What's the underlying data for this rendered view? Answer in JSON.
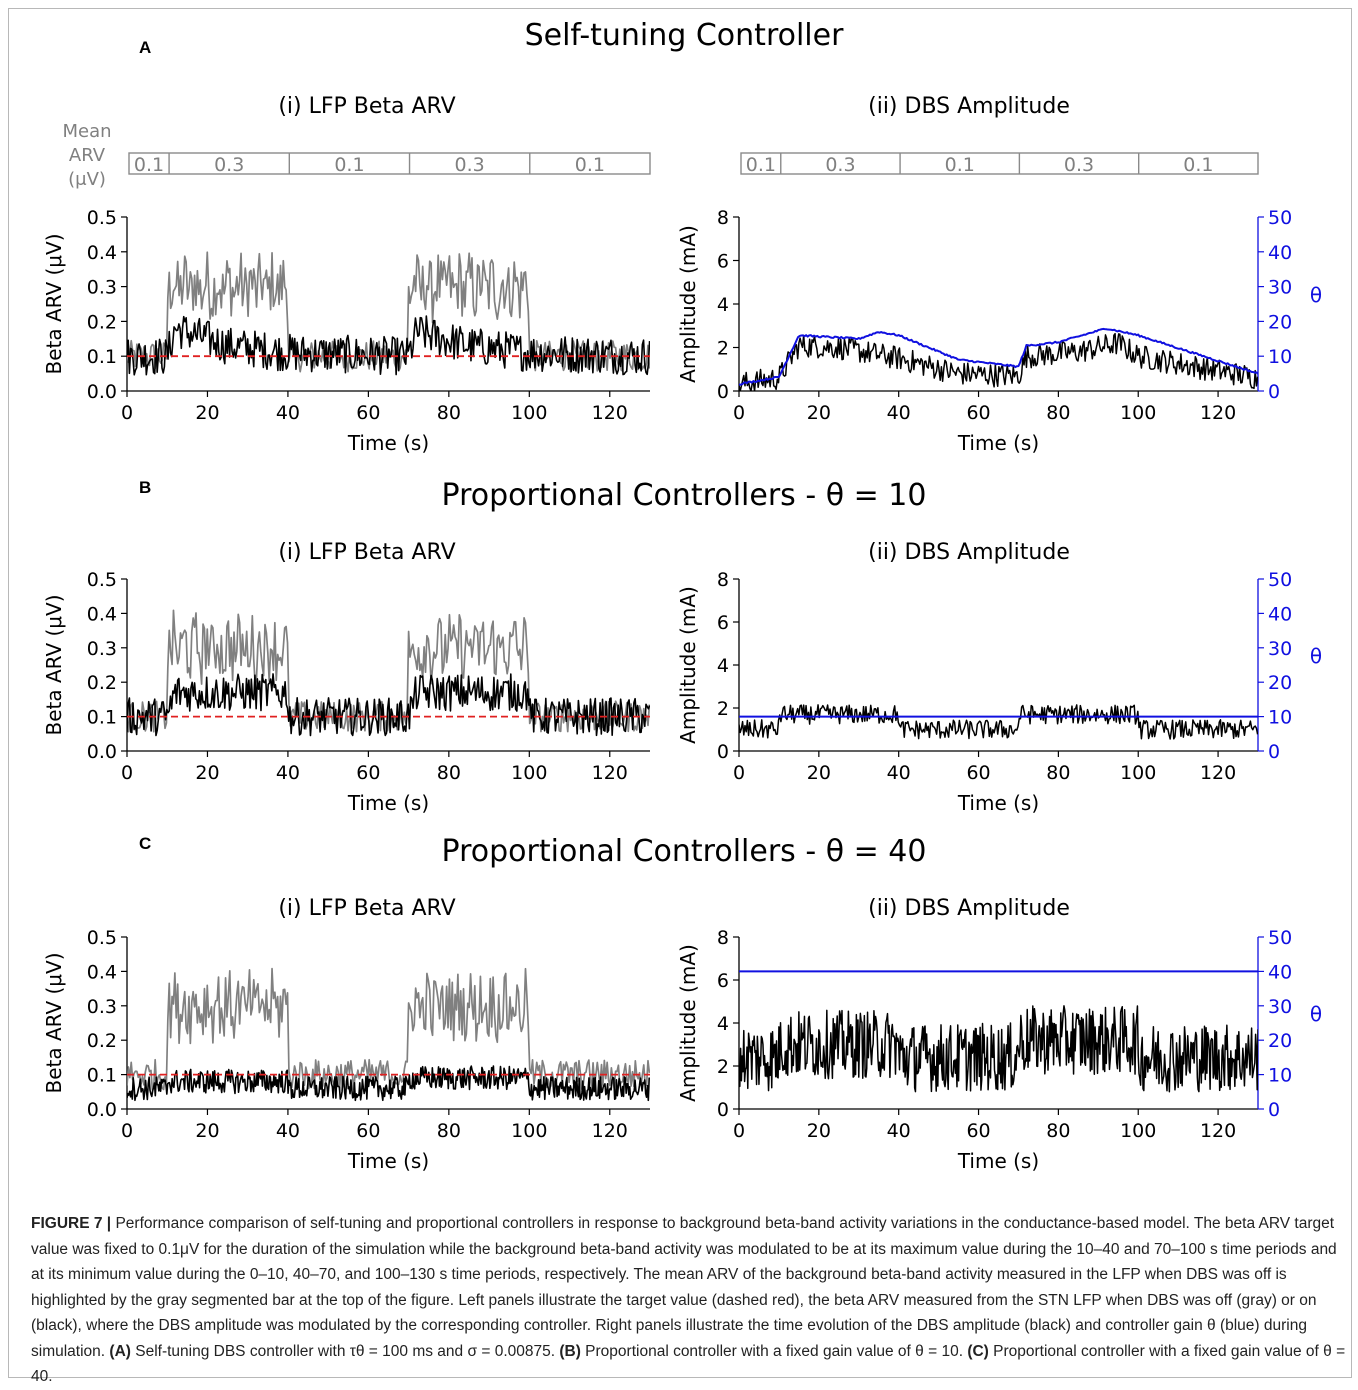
{
  "figure": {
    "sections": [
      {
        "letter": "A",
        "title": "Self-tuning Controller",
        "left_title": "(i) LFP Beta ARV",
        "right_title": "(ii) DBS Amplitude",
        "controller": "self-tuning"
      },
      {
        "letter": "B",
        "title": "Proportional Controllers - θ = 10",
        "left_title": "(i) LFP Beta ARV",
        "right_title": "(ii) DBS Amplitude",
        "controller": "proportional",
        "gain": 10
      },
      {
        "letter": "C",
        "title": "Proportional Controllers - θ = 40",
        "left_title": "(i) LFP Beta ARV",
        "right_title": "(ii) DBS Amplitude",
        "controller": "proportional",
        "gain": 40
      }
    ],
    "mean_arv_bar": {
      "label_lines": [
        "Mean",
        "ARV",
        "(μV)"
      ],
      "segments": [
        {
          "start": 0,
          "end": 10,
          "label": "0.1"
        },
        {
          "start": 10,
          "end": 40,
          "label": "0.3"
        },
        {
          "start": 40,
          "end": 70,
          "label": "0.1"
        },
        {
          "start": 70,
          "end": 100,
          "label": "0.3"
        },
        {
          "start": 100,
          "end": 130,
          "label": "0.1"
        }
      ]
    },
    "caption": {
      "lead": "FIGURE 7 |",
      "text": " Performance comparison of self-tuning and proportional controllers in response to background beta-band activity variations in the conductance-based model. The beta ARV target value was fixed to 0.1μV for the duration of the simulation while the background beta-band activity was modulated to be at its maximum value during the 10–40 and 70–100 s time periods and at its minimum value during the 0–10, 40–70, and 100–130 s time periods, respectively. The mean ARV of the background beta-band activity measured in the LFP when DBS was off is highlighted by the gray segmented bar at the top of the figure. Left panels illustrate the target value (dashed red), the beta ARV measured from the STN LFP when DBS was off (gray) or on (black), where the DBS amplitude was modulated by the corresponding controller. Right panels illustrate the time evolution of the DBS amplitude (black) and controller gain θ (blue) during simulation. ",
      "a_label": "(A)",
      "a_text": " Self-tuning DBS controller with τθ = 100 ms and σ = 0.00875. ",
      "b_label": "(B)",
      "b_text": " Proportional controller with a fixed gain value of θ = 10. ",
      "c_label": "(C)",
      "c_text": " Proportional controller with a fixed gain value of θ = 40."
    }
  },
  "chart_data": [
    {
      "type": "line",
      "panel": "A(i)",
      "title": "(i) LFP Beta ARV",
      "xlabel": "Time (s)",
      "ylabel": "Beta ARV (μV)",
      "xlim": [
        0,
        130
      ],
      "ylim": [
        0,
        0.5
      ],
      "xticks": [
        0,
        20,
        40,
        60,
        80,
        100,
        120
      ],
      "yticks": [
        0.0,
        0.1,
        0.2,
        0.3,
        0.4,
        0.5
      ],
      "series": [
        {
          "color": "#808080",
          "x": [
            0,
            10,
            10,
            40,
            40,
            70,
            70,
            100,
            100,
            130
          ],
          "values": [
            0.1,
            0.1,
            0.3,
            0.3,
            0.1,
            0.1,
            0.3,
            0.3,
            0.1,
            0.1
          ]
        },
        {
          "color": "#000000",
          "x": [
            0,
            10,
            12,
            25,
            40,
            70,
            72,
            85,
            100,
            130
          ],
          "values": [
            0.1,
            0.1,
            0.18,
            0.13,
            0.11,
            0.1,
            0.17,
            0.13,
            0.11,
            0.1
          ]
        },
        {
          "color": "#e02020",
          "dashed": true,
          "x": [
            0,
            130
          ],
          "values": [
            0.1,
            0.1
          ]
        }
      ]
    },
    {
      "type": "line",
      "panel": "A(ii)",
      "title": "(ii) DBS Amplitude",
      "xlabel": "Time (s)",
      "ylabel": "Amplitude (mA)",
      "y2label": "θ",
      "xlim": [
        0,
        130
      ],
      "ylim": [
        0,
        8
      ],
      "y2lim": [
        0,
        50
      ],
      "xticks": [
        0,
        20,
        40,
        60,
        80,
        100,
        120
      ],
      "yticks": [
        0,
        2,
        4,
        6,
        8
      ],
      "y2ticks": [
        0,
        10,
        20,
        30,
        40,
        50
      ],
      "series": [
        {
          "color": "#000000",
          "axis": "left",
          "x": [
            0,
            10,
            15,
            25,
            40,
            55,
            70,
            72,
            85,
            95,
            100,
            130
          ],
          "values": [
            0.3,
            0.6,
            2.1,
            2.0,
            1.5,
            0.8,
            0.7,
            1.6,
            1.8,
            2.2,
            1.6,
            0.6
          ]
        },
        {
          "color": "#1010e0",
          "axis": "right",
          "x": [
            0,
            10,
            15,
            30,
            35,
            40,
            55,
            70,
            72,
            80,
            92,
            100,
            130
          ],
          "values": [
            2,
            4,
            16,
            15,
            17,
            16,
            9,
            7,
            13,
            14,
            18,
            16,
            5
          ]
        }
      ]
    },
    {
      "type": "line",
      "panel": "B(i)",
      "title": "(i) LFP Beta ARV",
      "xlabel": "Time (s)",
      "ylabel": "Beta ARV (μV)",
      "xlim": [
        0,
        130
      ],
      "ylim": [
        0,
        0.5
      ],
      "xticks": [
        0,
        20,
        40,
        60,
        80,
        100,
        120
      ],
      "yticks": [
        0.0,
        0.1,
        0.2,
        0.3,
        0.4,
        0.5
      ],
      "series": [
        {
          "color": "#808080",
          "x": [
            0,
            10,
            10,
            40,
            40,
            70,
            70,
            100,
            100,
            130
          ],
          "values": [
            0.1,
            0.1,
            0.3,
            0.3,
            0.1,
            0.1,
            0.3,
            0.3,
            0.1,
            0.1
          ]
        },
        {
          "color": "#000000",
          "x": [
            0,
            10,
            12,
            40,
            40,
            70,
            72,
            100,
            100,
            130
          ],
          "values": [
            0.1,
            0.1,
            0.17,
            0.17,
            0.1,
            0.1,
            0.17,
            0.17,
            0.1,
            0.1
          ]
        },
        {
          "color": "#e02020",
          "dashed": true,
          "x": [
            0,
            130
          ],
          "values": [
            0.1,
            0.1
          ]
        }
      ]
    },
    {
      "type": "line",
      "panel": "B(ii)",
      "title": "(ii) DBS Amplitude",
      "xlabel": "Time (s)",
      "ylabel": "Amplitude (mA)",
      "y2label": "θ",
      "xlim": [
        0,
        130
      ],
      "ylim": [
        0,
        8
      ],
      "y2lim": [
        0,
        50
      ],
      "xticks": [
        0,
        20,
        40,
        60,
        80,
        100,
        120
      ],
      "yticks": [
        0,
        2,
        4,
        6,
        8
      ],
      "y2ticks": [
        0,
        10,
        20,
        30,
        40,
        50
      ],
      "series": [
        {
          "color": "#000000",
          "axis": "left",
          "x": [
            0,
            10,
            10,
            40,
            40,
            70,
            70,
            100,
            100,
            130
          ],
          "values": [
            1.0,
            1.0,
            1.7,
            1.7,
            1.0,
            1.0,
            1.7,
            1.7,
            1.0,
            1.0
          ]
        },
        {
          "color": "#1010e0",
          "axis": "right",
          "x": [
            0,
            130
          ],
          "values": [
            10,
            10
          ]
        }
      ]
    },
    {
      "type": "line",
      "panel": "C(i)",
      "title": "(i) LFP Beta ARV",
      "xlabel": "Time (s)",
      "ylabel": "Beta ARV (μV)",
      "xlim": [
        0,
        130
      ],
      "ylim": [
        0,
        0.5
      ],
      "xticks": [
        0,
        20,
        40,
        60,
        80,
        100,
        120
      ],
      "yticks": [
        0.0,
        0.1,
        0.2,
        0.3,
        0.4,
        0.5
      ],
      "series": [
        {
          "color": "#808080",
          "x": [
            0,
            10,
            10,
            40,
            40,
            70,
            70,
            100,
            100,
            130
          ],
          "values": [
            0.1,
            0.1,
            0.3,
            0.3,
            0.1,
            0.1,
            0.3,
            0.3,
            0.1,
            0.1
          ]
        },
        {
          "color": "#000000",
          "x": [
            0,
            10,
            10,
            40,
            40,
            70,
            70,
            100,
            100,
            130
          ],
          "values": [
            0.06,
            0.06,
            0.08,
            0.08,
            0.06,
            0.06,
            0.09,
            0.09,
            0.06,
            0.06
          ]
        },
        {
          "color": "#e02020",
          "dashed": true,
          "x": [
            0,
            130
          ],
          "values": [
            0.1,
            0.1
          ]
        }
      ]
    },
    {
      "type": "line",
      "panel": "C(ii)",
      "title": "(ii) DBS Amplitude",
      "xlabel": "Time (s)",
      "ylabel": "Amplitude (mA)",
      "y2label": "θ",
      "xlim": [
        0,
        130
      ],
      "ylim": [
        0,
        8
      ],
      "y2lim": [
        0,
        50
      ],
      "xticks": [
        0,
        20,
        40,
        60,
        80,
        100,
        120
      ],
      "yticks": [
        0,
        2,
        4,
        6,
        8
      ],
      "y2ticks": [
        0,
        10,
        20,
        30,
        40,
        50
      ],
      "series": [
        {
          "color": "#000000",
          "axis": "left",
          "x": [
            0,
            10,
            10,
            40,
            40,
            70,
            70,
            100,
            100,
            130
          ],
          "values": [
            2.4,
            2.4,
            3.0,
            3.0,
            2.4,
            2.4,
            3.2,
            3.2,
            2.4,
            2.4
          ]
        },
        {
          "color": "#1010e0",
          "axis": "right",
          "x": [
            0,
            130
          ],
          "values": [
            40,
            40
          ]
        }
      ]
    }
  ]
}
